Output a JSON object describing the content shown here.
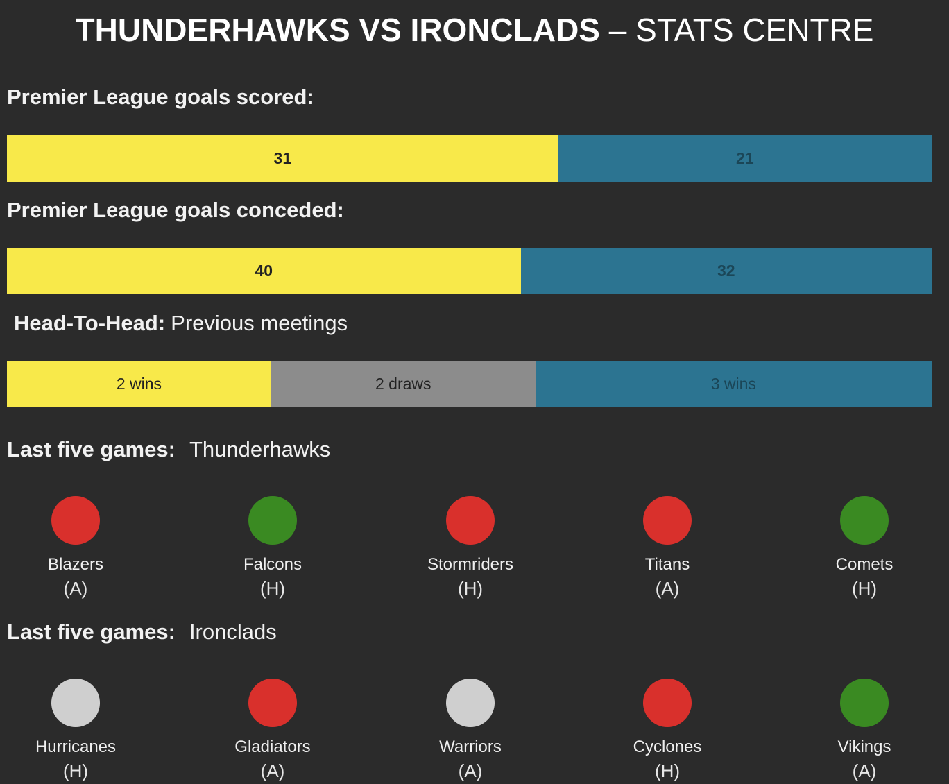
{
  "header": {
    "title_bold": "THUNDERHAWKS VS IRONCLADS",
    "title_rest": "– STATS CENTRE"
  },
  "goals_scored": {
    "label": "Premier League goals scored:",
    "values": [
      31,
      21
    ]
  },
  "goals_conceded": {
    "label": "Premier League goals conceded:",
    "values": [
      40,
      32
    ]
  },
  "team_colors": [
    "#f8e94a",
    "#2c7491"
  ],
  "head_to_head": {
    "label_bold": "Head-To-Head:",
    "label_rest": "Previous meetings",
    "segments": [
      {
        "value": 2,
        "label": "2 wins",
        "color": "#f8e94a"
      },
      {
        "value": 2,
        "label": "2 draws",
        "color": "#8c8c8c"
      },
      {
        "value": 3,
        "label": "3 wins",
        "color": "#2c7491"
      }
    ]
  },
  "form": [
    {
      "label_bold": "Last five games:",
      "team": "Thunderhawks",
      "games": [
        {
          "opponent": "Blazers",
          "venue": "(A)",
          "color": "#d9302c"
        },
        {
          "opponent": "Falcons",
          "venue": "(H)",
          "color": "#3a8a22"
        },
        {
          "opponent": "Stormriders",
          "venue": "(H)",
          "color": "#d9302c"
        },
        {
          "opponent": "Titans",
          "venue": "(A)",
          "color": "#d9302c"
        },
        {
          "opponent": "Comets",
          "venue": "(H)",
          "color": "#3a8a22"
        }
      ]
    },
    {
      "label_bold": "Last five games:",
      "team": "Ironclads",
      "games": [
        {
          "opponent": "Hurricanes",
          "venue": "(H)",
          "color": "#cfcfcf"
        },
        {
          "opponent": "Gladiators",
          "venue": "(A)",
          "color": "#d9302c"
        },
        {
          "opponent": "Warriors",
          "venue": "(A)",
          "color": "#cfcfcf"
        },
        {
          "opponent": "Cyclones",
          "venue": "(H)",
          "color": "#d9302c"
        },
        {
          "opponent": "Vikings",
          "venue": "(A)",
          "color": "#3a8a22"
        }
      ]
    }
  ]
}
